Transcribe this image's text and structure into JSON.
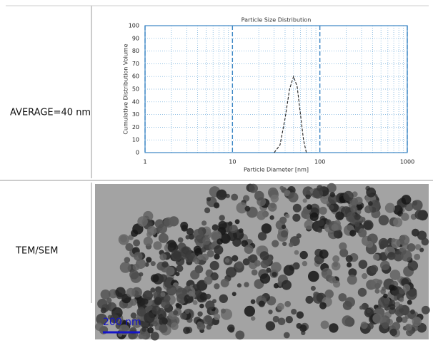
{
  "table": {
    "rows": [
      {
        "label": "AVERAGE=40 nm",
        "chart": {
          "type": "line",
          "title": "Particle Size Distribution",
          "x_label": "Particle Diameter [nm]",
          "y_label": "Cumulative Distribution Volume",
          "x": [
            30,
            35,
            40,
            45,
            50,
            55,
            60,
            65,
            70
          ],
          "values": [
            0,
            6,
            27,
            50,
            60,
            52,
            30,
            10,
            0
          ],
          "color": "#222222",
          "xlim": [
            1,
            1000
          ],
          "xticks": [
            1,
            10,
            100,
            1000
          ],
          "log_x": true,
          "ylim": [
            0,
            100
          ],
          "yticks": [
            0,
            10,
            20,
            30,
            40,
            50,
            60,
            70,
            80,
            90,
            100
          ],
          "grid": true
        }
      },
      {
        "label": "TEM/SEM",
        "image": {
          "scale_bar": "200 nm"
        }
      }
    ]
  }
}
